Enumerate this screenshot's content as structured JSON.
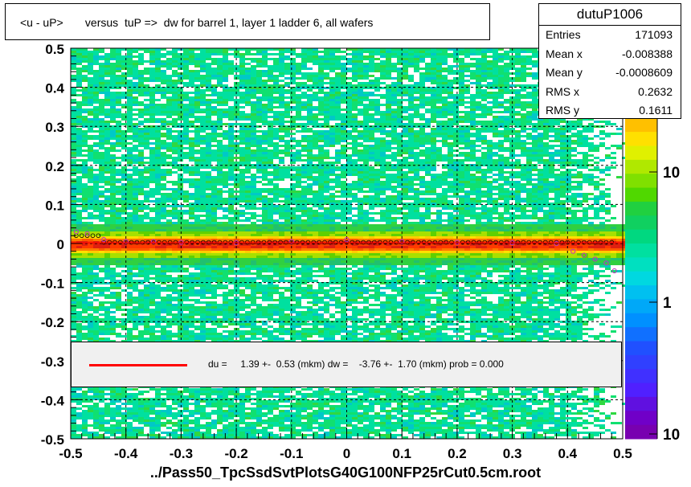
{
  "chart_data": {
    "type": "heatmap",
    "title": "<u - uP>       versus  tuP =>  dw for barrel 1, layer 1 ladder 6, all wafers",
    "xlabel": "../Pass50_TpcSsdSvtPlotsG40G100NFP25rCut0.5cm.root",
    "ylabel": "",
    "xlim": [
      -0.5,
      0.5
    ],
    "ylim": [
      -0.5,
      0.5
    ],
    "x_ticks": [
      "-0.5",
      "-0.4",
      "-0.3",
      "-0.2",
      "-0.1",
      "0",
      "0.1",
      "0.2",
      "0.3",
      "0.4",
      "0.5"
    ],
    "y_ticks": [
      "0.5",
      "0.4",
      "0.3",
      "0.2",
      "0.1",
      "0",
      "-0.1",
      "-0.2",
      "-0.3",
      "-0.4",
      "-0.5"
    ],
    "grid": true,
    "z_scale": "log",
    "z_ticks": [
      "10",
      "1",
      "10"
    ],
    "band_center_y": 0.0,
    "profile_points": [
      {
        "x": -0.49,
        "y": 0.03
      },
      {
        "x": -0.47,
        "y": 0.025
      },
      {
        "x": -0.44,
        "y": 0.01
      },
      {
        "x": -0.4,
        "y": 0.005
      },
      {
        "x": -0.35,
        "y": 0.005
      },
      {
        "x": -0.3,
        "y": 0.003
      },
      {
        "x": -0.2,
        "y": 0.002
      },
      {
        "x": -0.1,
        "y": 0.005
      },
      {
        "x": 0.0,
        "y": 0.01
      },
      {
        "x": 0.1,
        "y": 0.005
      },
      {
        "x": 0.2,
        "y": 0.003
      },
      {
        "x": 0.3,
        "y": 0.002
      },
      {
        "x": 0.38,
        "y": 0.0
      },
      {
        "x": 0.41,
        "y": -0.02
      },
      {
        "x": 0.43,
        "y": -0.03
      },
      {
        "x": 0.45,
        "y": -0.04
      },
      {
        "x": 0.47,
        "y": -0.05
      },
      {
        "x": 0.485,
        "y": -0.07
      }
    ],
    "stats": {
      "name": "dutuP1006",
      "rows": [
        {
          "label": "Entries",
          "value": "171093"
        },
        {
          "label": "Mean x",
          "value": "-0.008388"
        },
        {
          "label": "Mean y",
          "value": "-0.0008609"
        },
        {
          "label": "RMS x",
          "value": "0.2632"
        },
        {
          "label": "RMS y",
          "value": "0.1611"
        }
      ]
    },
    "fit_text": "du =     1.39 +-  0.53 (mkm) dw =    -3.76 +-  1.70 (mkm) prob = 0.000",
    "fit_color": "#ff0000"
  }
}
